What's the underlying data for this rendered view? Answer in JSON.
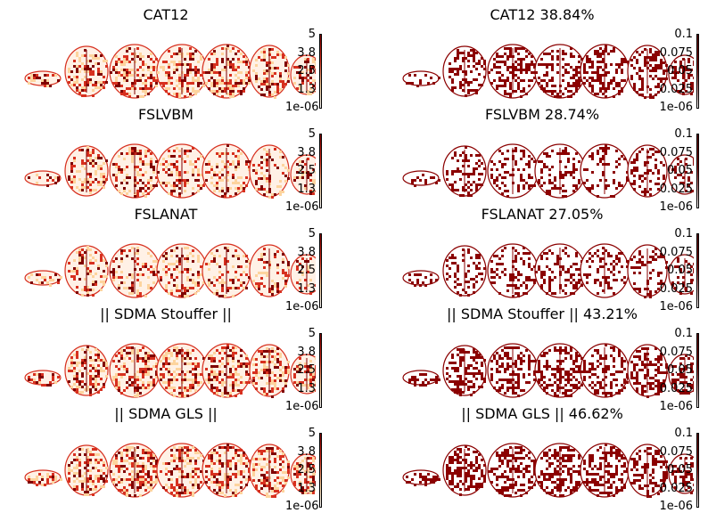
{
  "figure": {
    "rows": [
      {
        "left": {
          "title": "CAT12",
          "density": 0.42
        },
        "right": {
          "title": "CAT12 38.84%",
          "density": 0.39
        }
      },
      {
        "left": {
          "title": "FSLVBM",
          "density": 0.33
        },
        "right": {
          "title": "FSLVBM 28.74%",
          "density": 0.29
        }
      },
      {
        "left": {
          "title": "FSLANAT",
          "density": 0.31
        },
        "right": {
          "title": "FSLANAT 27.05%",
          "density": 0.27
        }
      },
      {
        "left": {
          "title": "|| SDMA Stouffer ||",
          "density": 0.45
        },
        "right": {
          "title": "|| SDMA Stouffer || 43.21%",
          "density": 0.43
        }
      },
      {
        "left": {
          "title": "|| SDMA GLS ||",
          "density": 0.48
        },
        "right": {
          "title": "|| SDMA GLS || 46.62%",
          "density": 0.47
        }
      }
    ],
    "left_colorbar_ticks": [
      "5",
      "3.8",
      "2.5",
      "1.3",
      "1e-06"
    ],
    "right_colorbar_ticks": [
      "0.1",
      "0.075",
      "0.05",
      "0.025",
      "1e-06"
    ],
    "colors": {
      "dark": "#7f0000",
      "mid": "#d7301f",
      "light": "#fdd49e",
      "pale": "#fff1e6",
      "right_fill": "#8b0000"
    }
  }
}
